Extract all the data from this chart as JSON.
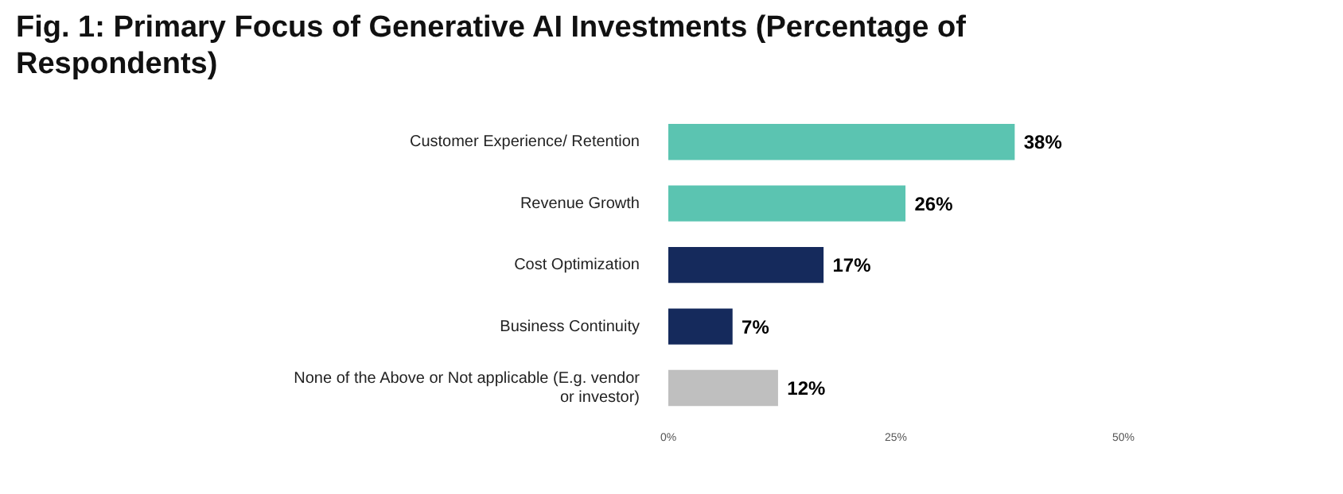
{
  "chart_data": {
    "type": "bar",
    "orientation": "horizontal",
    "title": "Fig. 1: Primary Focus of Generative AI Investments (Percentage of Respondents)",
    "categories": [
      "Customer Experience/ Retention",
      "Revenue Growth",
      "Cost Optimization",
      "Business Continuity",
      "None of the Above or Not applicable (E.g. vendor or investor)"
    ],
    "values": [
      38,
      26,
      17,
      7,
      12
    ],
    "colors": [
      "#5bc4b1",
      "#5bc4b1",
      "#152a5c",
      "#152a5c",
      "#bfbfbf"
    ],
    "value_labels": [
      "38%",
      "26%",
      "17%",
      "7%",
      "12%"
    ],
    "xlim": [
      0,
      50
    ],
    "xticks": [
      {
        "value": 0,
        "label": "0%"
      },
      {
        "value": 25,
        "label": "25%"
      },
      {
        "value": 50,
        "label": "50%"
      }
    ],
    "grid": false,
    "legend": false
  }
}
